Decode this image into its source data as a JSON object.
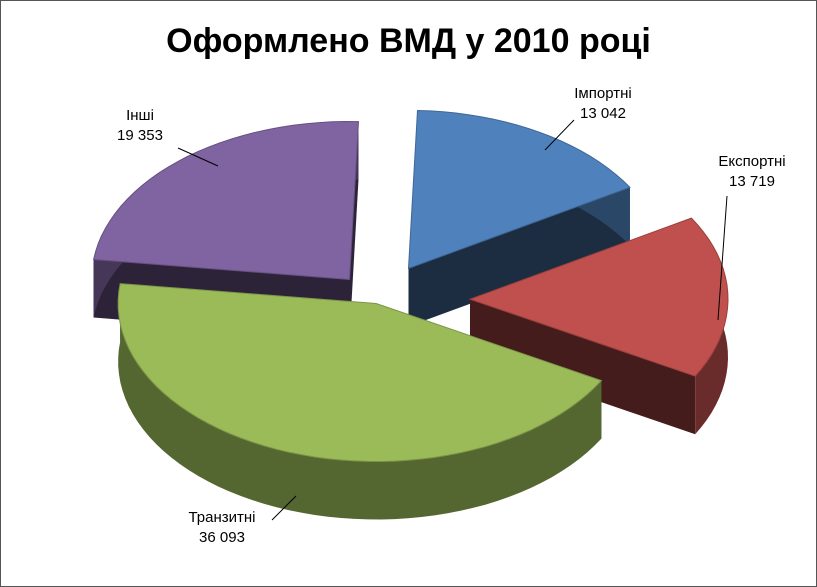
{
  "chart_data": {
    "type": "pie",
    "style": "3d-exploded",
    "title": "Оформлено ВМД у 2010 році",
    "categories": [
      "Імпортні",
      "Експортні",
      "Транзитні",
      "Інші"
    ],
    "values": [
      13042,
      13719,
      36093,
      19353
    ],
    "value_labels": [
      "13 042",
      "13 719",
      "36 093",
      "19 353"
    ],
    "colors": [
      "#4f81bd",
      "#c0504d",
      "#9bbb59",
      "#8064a2"
    ],
    "legend": "none"
  }
}
